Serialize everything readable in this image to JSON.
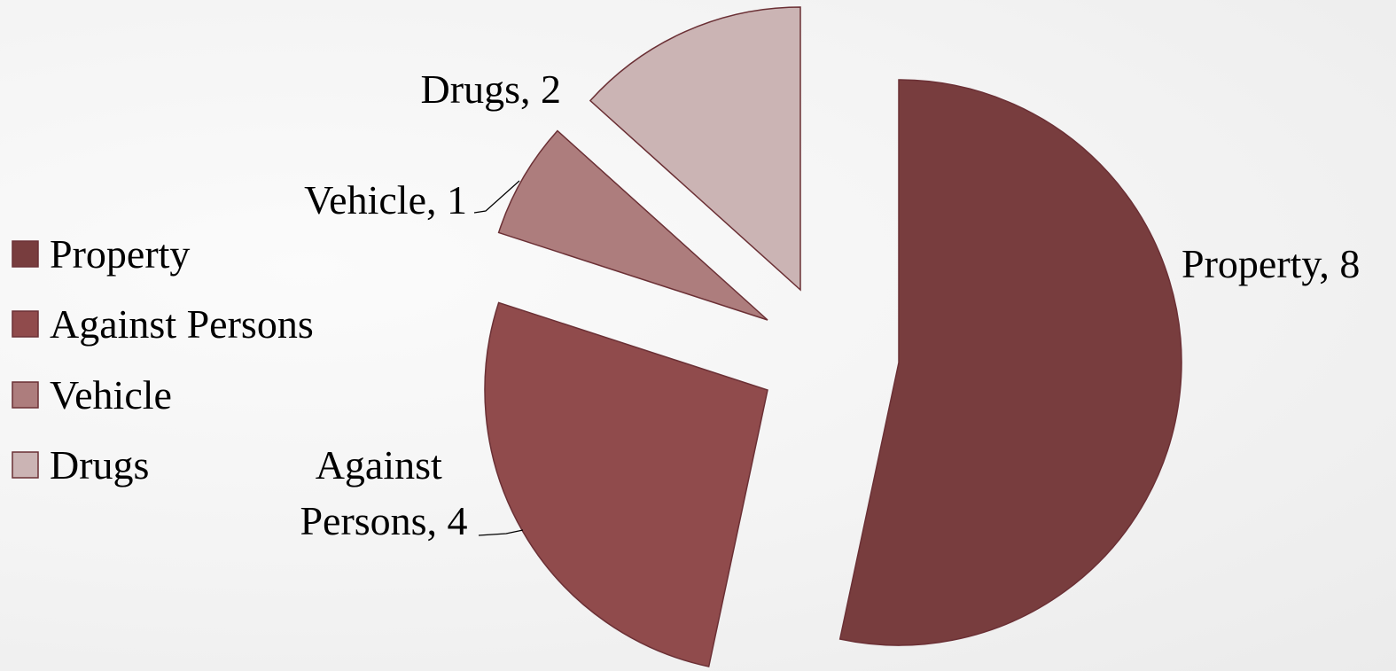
{
  "chart_data": {
    "type": "pie",
    "exploded": true,
    "categories": [
      "Property",
      "Against Persons",
      "Vehicle",
      "Drugs"
    ],
    "values": [
      8,
      4,
      1,
      2
    ],
    "colors": [
      "#783d3e",
      "#904b4c",
      "#ad7d7d",
      "#cbb4b4"
    ],
    "data_labels": [
      "Property, 8",
      "Against Persons, 4",
      "Vehicle, 1",
      "Drugs, 2"
    ],
    "legend": {
      "position": "left",
      "entries": [
        "Property",
        "Against Persons",
        "Vehicle",
        "Drugs"
      ]
    }
  }
}
